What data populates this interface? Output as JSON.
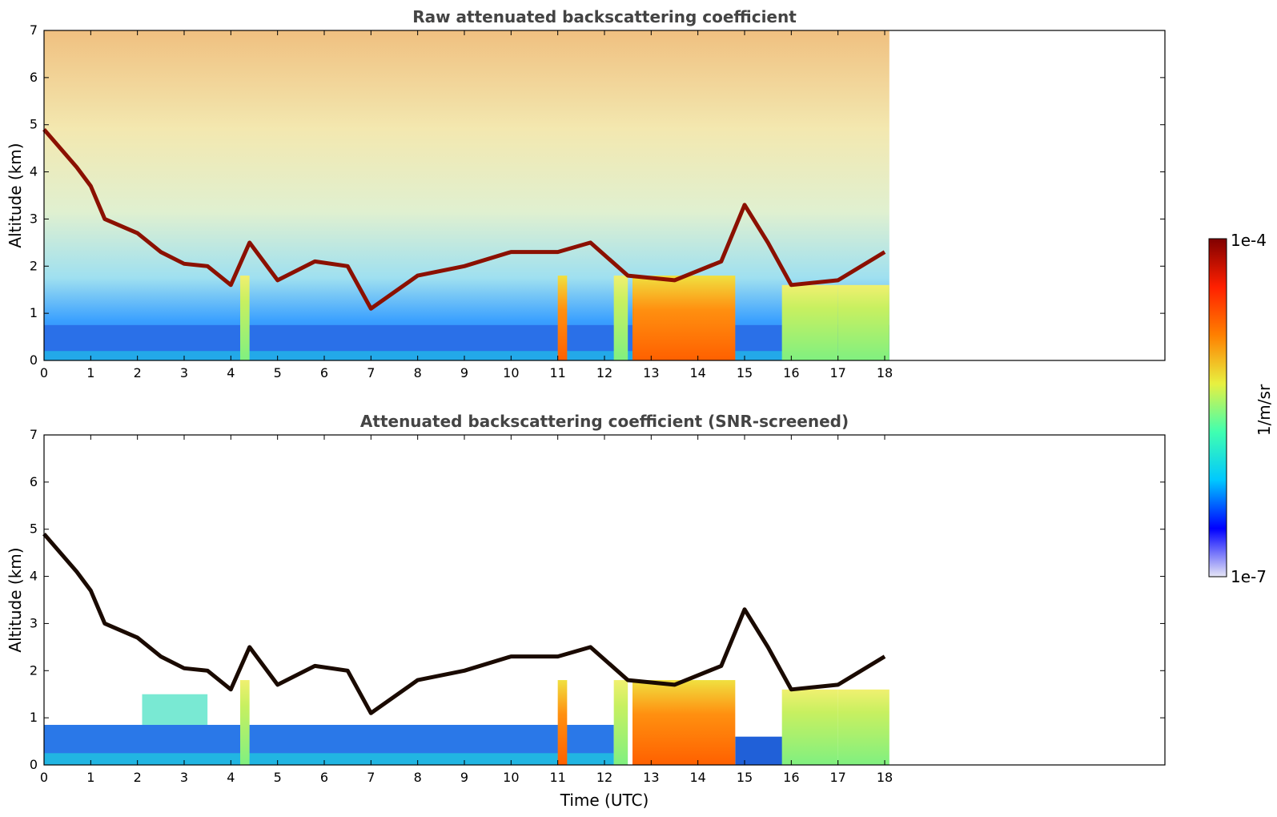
{
  "chart_data": [
    {
      "type": "heatmap",
      "title": "Raw attenuated backscattering coefficient",
      "xlabel": "",
      "ylabel": "Altitude (km)",
      "xlim": [
        0,
        24
      ],
      "ylim": [
        0,
        7
      ],
      "xticks": [
        "0",
        "1",
        "2",
        "3",
        "4",
        "5",
        "6",
        "7",
        "8",
        "9",
        "10",
        "11",
        "12",
        "13",
        "14",
        "15",
        "16",
        "17",
        "18"
      ],
      "yticks": [
        "0",
        "1",
        "2",
        "3",
        "4",
        "5",
        "6",
        "7"
      ],
      "data_end_time": 18.1,
      "features": {
        "boundary_layer_top_km": 0.8,
        "cloud_layer": [
          [
            0.0,
            4.9
          ],
          [
            0.7,
            4.1
          ],
          [
            1.0,
            3.7
          ],
          [
            1.3,
            3.0
          ],
          [
            2.0,
            2.7
          ],
          [
            2.5,
            2.3
          ],
          [
            3.0,
            2.05
          ],
          [
            3.5,
            2.0
          ],
          [
            4.0,
            1.6
          ],
          [
            4.4,
            2.5
          ],
          [
            5.0,
            1.7
          ],
          [
            5.8,
            2.1
          ],
          [
            6.5,
            2.0
          ],
          [
            7.0,
            1.1
          ],
          [
            8.0,
            1.8
          ],
          [
            9.0,
            2.0
          ],
          [
            10.0,
            2.3
          ],
          [
            11.0,
            2.3
          ],
          [
            11.7,
            2.5
          ],
          [
            12.5,
            1.8
          ],
          [
            13.5,
            1.7
          ],
          [
            14.5,
            2.1
          ],
          [
            15.0,
            3.3
          ],
          [
            15.5,
            2.5
          ],
          [
            16.0,
            1.6
          ],
          [
            17.0,
            1.7
          ],
          [
            18.0,
            2.3
          ]
        ],
        "precipitation_shafts": [
          [
            4.2,
            4.4
          ],
          [
            11.0,
            11.2
          ],
          [
            12.2,
            12.5
          ],
          [
            12.6,
            14.8
          ],
          [
            15.8,
            17.0
          ],
          [
            17.0,
            18.1
          ]
        ]
      }
    },
    {
      "type": "heatmap",
      "title": "Attenuated backscattering coefficient (SNR-screened)",
      "xlabel": "Time (UTC)",
      "ylabel": "Altitude (km)",
      "xlim": [
        0,
        24
      ],
      "ylim": [
        0,
        7
      ],
      "xticks": [
        "0",
        "1",
        "2",
        "3",
        "4",
        "5",
        "6",
        "7",
        "8",
        "9",
        "10",
        "11",
        "12",
        "13",
        "14",
        "15",
        "16",
        "17",
        "18"
      ],
      "yticks": [
        "0",
        "1",
        "2",
        "3",
        "4",
        "5",
        "6",
        "7"
      ],
      "data_end_time": 18.1
    }
  ],
  "colorbar": {
    "label": "1/m/sr",
    "max_label": "1e-4",
    "min_label": "1e-7",
    "scale": "log",
    "colormap": "jet",
    "colors": [
      "#e6e6f5",
      "#0000ff",
      "#00c8ff",
      "#40ffb0",
      "#e8f040",
      "#ff8000",
      "#ff2000",
      "#800000"
    ]
  }
}
